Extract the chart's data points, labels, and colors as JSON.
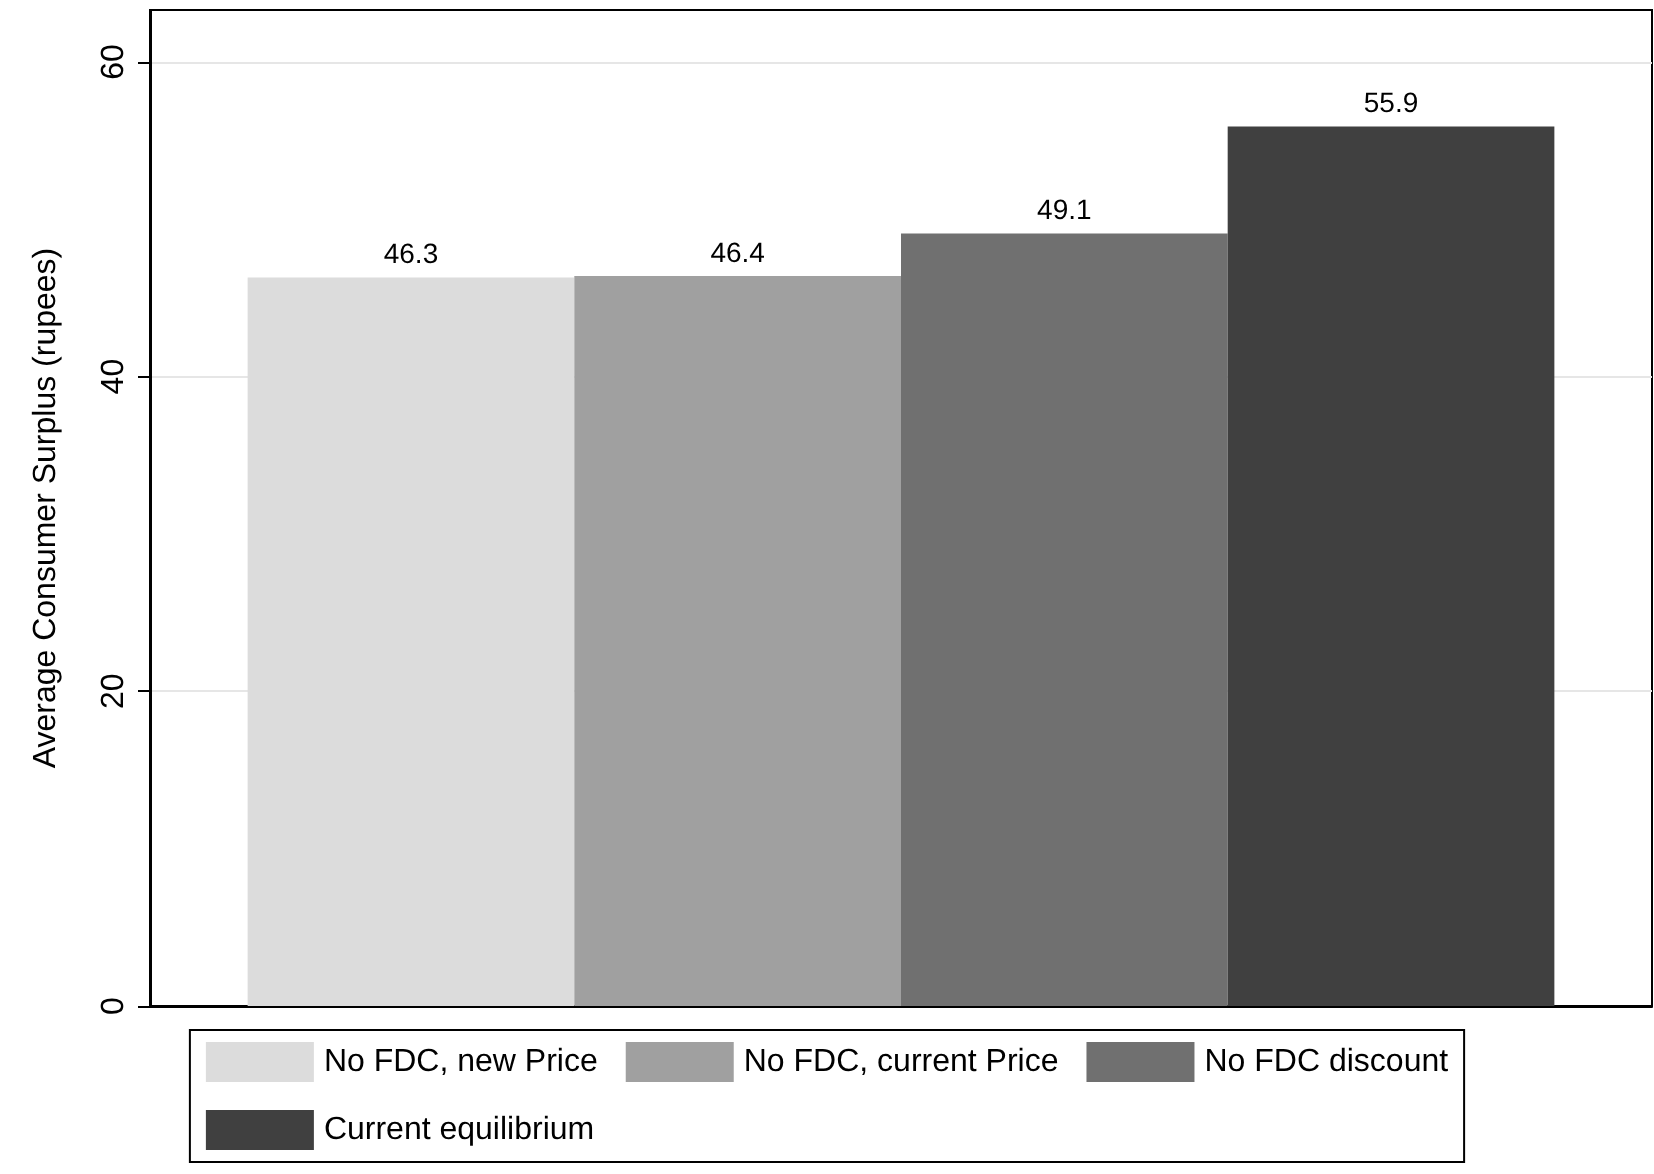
{
  "chart_data": {
    "type": "bar",
    "ylabel": "Average Consumer Surplus (rupees)",
    "categories": [
      null
    ],
    "series": [
      {
        "name": "No FDC, new Price",
        "color": "#dcdcdc",
        "values": [
          46.3
        ]
      },
      {
        "name": "No FDC, current Price",
        "color": "#a0a0a0",
        "values": [
          46.4
        ]
      },
      {
        "name": "No FDC discount",
        "color": "#707070",
        "values": [
          49.1
        ]
      },
      {
        "name": "Current equilibrium",
        "color": "#404040",
        "values": [
          55.9
        ]
      }
    ],
    "ylim": [
      0,
      63.3
    ],
    "yticks": [
      0,
      20,
      40,
      60
    ],
    "grid": "y",
    "legend": "bottom",
    "data_labels": true
  }
}
